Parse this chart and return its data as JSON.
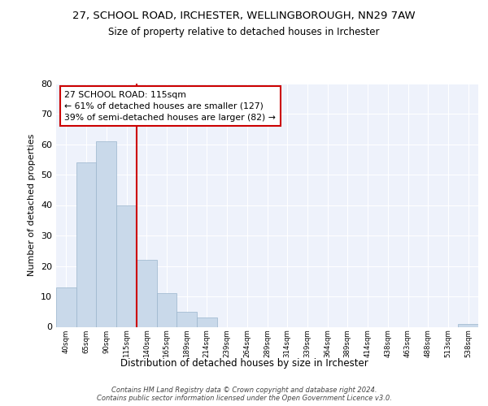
{
  "title": "27, SCHOOL ROAD, IRCHESTER, WELLINGBOROUGH, NN29 7AW",
  "subtitle": "Size of property relative to detached houses in Irchester",
  "xlabel": "Distribution of detached houses by size in Irchester",
  "ylabel": "Number of detached properties",
  "bar_values": [
    13,
    54,
    61,
    40,
    22,
    11,
    5,
    3,
    0,
    0,
    0,
    0,
    0,
    0,
    0,
    0,
    0,
    0,
    0,
    0,
    1
  ],
  "bar_labels": [
    "40sqm",
    "65sqm",
    "90sqm",
    "115sqm",
    "140sqm",
    "165sqm",
    "189sqm",
    "214sqm",
    "239sqm",
    "264sqm",
    "289sqm",
    "314sqm",
    "339sqm",
    "364sqm",
    "389sqm",
    "414sqm",
    "438sqm",
    "463sqm",
    "488sqm",
    "513sqm",
    "538sqm"
  ],
  "property_line_x": 3,
  "annotation_text": "27 SCHOOL ROAD: 115sqm\n← 61% of detached houses are smaller (127)\n39% of semi-detached houses are larger (82) →",
  "bar_color": "#c9d9ea",
  "bar_edge_color": "#9ab5cc",
  "line_color": "#cc0000",
  "annotation_box_color": "#cc0000",
  "background_color": "#eef2fb",
  "ylim": [
    0,
    80
  ],
  "yticks": [
    0,
    10,
    20,
    30,
    40,
    50,
    60,
    70,
    80
  ],
  "footnote": "Contains HM Land Registry data © Crown copyright and database right 2024.\nContains public sector information licensed under the Open Government Licence v3.0.",
  "fig_bg_color": "#ffffff"
}
